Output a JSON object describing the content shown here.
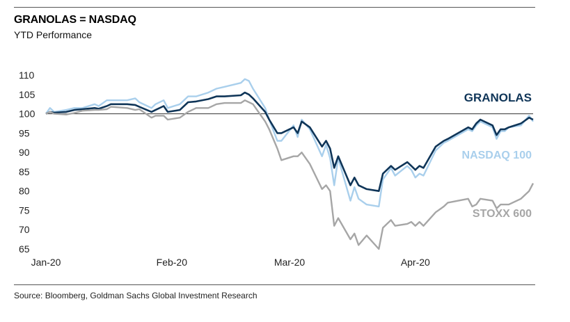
{
  "header": {
    "title": "GRANOLAS = NASDAQ",
    "subtitle": "YTD Performance"
  },
  "footer": {
    "source": "Source: Bloomberg, Goldman Sachs Global Investment Research"
  },
  "chart_data": {
    "type": "line",
    "title": "GRANOLAS = NASDAQ",
    "subtitle": "YTD Performance",
    "xlabel": "",
    "ylabel": "",
    "x_tick_labels": [
      "Jan-20",
      "Feb-20",
      "Mar-20",
      "Apr-20"
    ],
    "x_ticks": [
      "2020-01-01",
      "2020-02-01",
      "2020-03-01",
      "2020-04-01"
    ],
    "xlim": [
      "2020-01-01",
      "2020-04-30"
    ],
    "y_ticks": [
      65,
      70,
      75,
      80,
      85,
      90,
      95,
      100,
      105,
      110
    ],
    "ylim": [
      65,
      112
    ],
    "reference_line": 100,
    "grid": false,
    "legend": "inline labels at right end of series",
    "series": [
      {
        "name": "NASDAQ 100",
        "color": "#a9cfec",
        "points": [
          [
            "2020-01-01",
            100
          ],
          [
            "2020-01-02",
            101.5
          ],
          [
            "2020-01-03",
            100.5
          ],
          [
            "2020-01-06",
            101
          ],
          [
            "2020-01-08",
            101.5
          ],
          [
            "2020-01-10",
            101.5
          ],
          [
            "2020-01-13",
            102.5
          ],
          [
            "2020-01-14",
            102
          ],
          [
            "2020-01-16",
            103.5
          ],
          [
            "2020-01-17",
            103.5
          ],
          [
            "2020-01-21",
            103.5
          ],
          [
            "2020-01-23",
            104
          ],
          [
            "2020-01-24",
            103
          ],
          [
            "2020-01-27",
            101.5
          ],
          [
            "2020-01-28",
            102.5
          ],
          [
            "2020-01-30",
            103.5
          ],
          [
            "2020-01-31",
            101.5
          ],
          [
            "2020-02-03",
            102.5
          ],
          [
            "2020-02-05",
            104.5
          ],
          [
            "2020-02-07",
            104.5
          ],
          [
            "2020-02-10",
            105.5
          ],
          [
            "2020-02-12",
            106.5
          ],
          [
            "2020-02-14",
            107
          ],
          [
            "2020-02-18",
            108
          ],
          [
            "2020-02-19",
            109
          ],
          [
            "2020-02-20",
            108.5
          ],
          [
            "2020-02-21",
            106.5
          ],
          [
            "2020-02-24",
            101.5
          ],
          [
            "2020-02-25",
            98.5
          ],
          [
            "2020-02-27",
            93
          ],
          [
            "2020-02-28",
            93
          ],
          [
            "2020-03-02",
            97
          ],
          [
            "2020-03-03",
            94
          ],
          [
            "2020-03-04",
            98.5
          ],
          [
            "2020-03-06",
            96
          ],
          [
            "2020-03-09",
            89
          ],
          [
            "2020-03-10",
            92
          ],
          [
            "2020-03-11",
            88.5
          ],
          [
            "2020-03-12",
            81.5
          ],
          [
            "2020-03-13",
            88.5
          ],
          [
            "2020-03-16",
            77.5
          ],
          [
            "2020-03-17",
            81
          ],
          [
            "2020-03-18",
            78
          ],
          [
            "2020-03-20",
            76.5
          ],
          [
            "2020-03-23",
            76
          ],
          [
            "2020-03-24",
            83
          ],
          [
            "2020-03-26",
            86
          ],
          [
            "2020-03-27",
            84
          ],
          [
            "2020-03-30",
            86.5
          ],
          [
            "2020-03-31",
            85.5
          ],
          [
            "2020-04-01",
            83.5
          ],
          [
            "2020-04-02",
            84.5
          ],
          [
            "2020-04-03",
            84
          ],
          [
            "2020-04-06",
            90.5
          ],
          [
            "2020-04-08",
            92.5
          ],
          [
            "2020-04-09",
            93
          ],
          [
            "2020-04-14",
            96
          ],
          [
            "2020-04-15",
            95.5
          ],
          [
            "2020-04-16",
            97
          ],
          [
            "2020-04-17",
            98
          ],
          [
            "2020-04-20",
            96.5
          ],
          [
            "2020-04-21",
            93.5
          ],
          [
            "2020-04-22",
            95.5
          ],
          [
            "2020-04-23",
            95.5
          ],
          [
            "2020-04-24",
            96.5
          ],
          [
            "2020-04-27",
            97
          ],
          [
            "2020-04-29",
            99.5
          ],
          [
            "2020-04-30",
            98
          ]
        ]
      },
      {
        "name": "GRANOLAS",
        "color": "#0f3558",
        "points": [
          [
            "2020-01-01",
            100
          ],
          [
            "2020-01-02",
            100.5
          ],
          [
            "2020-01-03",
            100.3
          ],
          [
            "2020-01-06",
            100.5
          ],
          [
            "2020-01-08",
            101
          ],
          [
            "2020-01-10",
            101.2
          ],
          [
            "2020-01-13",
            101.5
          ],
          [
            "2020-01-14",
            101.3
          ],
          [
            "2020-01-16",
            102
          ],
          [
            "2020-01-17",
            102.5
          ],
          [
            "2020-01-21",
            102.5
          ],
          [
            "2020-01-23",
            102.3
          ],
          [
            "2020-01-24",
            101.8
          ],
          [
            "2020-01-27",
            100.5
          ],
          [
            "2020-01-28",
            101
          ],
          [
            "2020-01-30",
            102
          ],
          [
            "2020-01-31",
            100.5
          ],
          [
            "2020-02-03",
            101
          ],
          [
            "2020-02-05",
            103
          ],
          [
            "2020-02-07",
            103.2
          ],
          [
            "2020-02-10",
            103.8
          ],
          [
            "2020-02-12",
            104.5
          ],
          [
            "2020-02-14",
            104.5
          ],
          [
            "2020-02-18",
            104.8
          ],
          [
            "2020-02-19",
            105.5
          ],
          [
            "2020-02-20",
            105
          ],
          [
            "2020-02-21",
            104
          ],
          [
            "2020-02-24",
            100.5
          ],
          [
            "2020-02-25",
            98.5
          ],
          [
            "2020-02-27",
            95
          ],
          [
            "2020-02-28",
            95
          ],
          [
            "2020-03-02",
            96.5
          ],
          [
            "2020-03-03",
            95
          ],
          [
            "2020-03-04",
            98
          ],
          [
            "2020-03-06",
            96.5
          ],
          [
            "2020-03-09",
            91.5
          ],
          [
            "2020-03-10",
            93
          ],
          [
            "2020-03-11",
            91
          ],
          [
            "2020-03-12",
            86
          ],
          [
            "2020-03-13",
            89
          ],
          [
            "2020-03-16",
            81.5
          ],
          [
            "2020-03-17",
            83.5
          ],
          [
            "2020-03-18",
            81.5
          ],
          [
            "2020-03-20",
            80.5
          ],
          [
            "2020-03-23",
            80
          ],
          [
            "2020-03-24",
            84.5
          ],
          [
            "2020-03-26",
            86.5
          ],
          [
            "2020-03-27",
            85.5
          ],
          [
            "2020-03-30",
            87.5
          ],
          [
            "2020-03-31",
            86.5
          ],
          [
            "2020-04-01",
            85.5
          ],
          [
            "2020-04-02",
            86.5
          ],
          [
            "2020-04-03",
            86
          ],
          [
            "2020-04-06",
            91.5
          ],
          [
            "2020-04-08",
            93
          ],
          [
            "2020-04-09",
            93.5
          ],
          [
            "2020-04-14",
            96.5
          ],
          [
            "2020-04-15",
            96
          ],
          [
            "2020-04-16",
            97.5
          ],
          [
            "2020-04-17",
            98.5
          ],
          [
            "2020-04-20",
            97
          ],
          [
            "2020-04-21",
            94.5
          ],
          [
            "2020-04-22",
            96
          ],
          [
            "2020-04-23",
            96
          ],
          [
            "2020-04-24",
            96.5
          ],
          [
            "2020-04-27",
            97.5
          ],
          [
            "2020-04-29",
            99
          ],
          [
            "2020-04-30",
            98.5
          ]
        ]
      },
      {
        "name": "STOXX 600",
        "color": "#a6a6a6",
        "points": [
          [
            "2020-01-01",
            100
          ],
          [
            "2020-01-02",
            100.5
          ],
          [
            "2020-01-03",
            100
          ],
          [
            "2020-01-06",
            99.8
          ],
          [
            "2020-01-08",
            100.2
          ],
          [
            "2020-01-10",
            100.8
          ],
          [
            "2020-01-13",
            101
          ],
          [
            "2020-01-14",
            101
          ],
          [
            "2020-01-16",
            101.2
          ],
          [
            "2020-01-17",
            101.8
          ],
          [
            "2020-01-21",
            101.5
          ],
          [
            "2020-01-23",
            101
          ],
          [
            "2020-01-24",
            101.2
          ],
          [
            "2020-01-27",
            99
          ],
          [
            "2020-01-28",
            99.5
          ],
          [
            "2020-01-30",
            99.5
          ],
          [
            "2020-01-31",
            98.5
          ],
          [
            "2020-02-03",
            99
          ],
          [
            "2020-02-05",
            100.5
          ],
          [
            "2020-02-07",
            101.5
          ],
          [
            "2020-02-10",
            101.5
          ],
          [
            "2020-02-12",
            102.5
          ],
          [
            "2020-02-14",
            102.8
          ],
          [
            "2020-02-18",
            102.8
          ],
          [
            "2020-02-19",
            103.5
          ],
          [
            "2020-02-20",
            103
          ],
          [
            "2020-02-21",
            102.5
          ],
          [
            "2020-02-24",
            98
          ],
          [
            "2020-02-25",
            96
          ],
          [
            "2020-02-27",
            91
          ],
          [
            "2020-02-28",
            88
          ],
          [
            "2020-03-02",
            89
          ],
          [
            "2020-03-03",
            89
          ],
          [
            "2020-03-04",
            90
          ],
          [
            "2020-03-06",
            87
          ],
          [
            "2020-03-09",
            80.5
          ],
          [
            "2020-03-10",
            81.5
          ],
          [
            "2020-03-11",
            80
          ],
          [
            "2020-03-12",
            71
          ],
          [
            "2020-03-13",
            73
          ],
          [
            "2020-03-16",
            67.5
          ],
          [
            "2020-03-17",
            69
          ],
          [
            "2020-03-18",
            66
          ],
          [
            "2020-03-20",
            68.5
          ],
          [
            "2020-03-23",
            65
          ],
          [
            "2020-03-24",
            70.5
          ],
          [
            "2020-03-26",
            72.5
          ],
          [
            "2020-03-27",
            71
          ],
          [
            "2020-03-30",
            71.5
          ],
          [
            "2020-03-31",
            72
          ],
          [
            "2020-04-01",
            71
          ],
          [
            "2020-04-02",
            72
          ],
          [
            "2020-04-03",
            71
          ],
          [
            "2020-04-06",
            74.5
          ],
          [
            "2020-04-08",
            76
          ],
          [
            "2020-04-09",
            77
          ],
          [
            "2020-04-14",
            78
          ],
          [
            "2020-04-15",
            76
          ],
          [
            "2020-04-16",
            76.5
          ],
          [
            "2020-04-17",
            78
          ],
          [
            "2020-04-20",
            77.5
          ],
          [
            "2020-04-21",
            75.5
          ],
          [
            "2020-04-22",
            76.5
          ],
          [
            "2020-04-23",
            76.5
          ],
          [
            "2020-04-24",
            76.5
          ],
          [
            "2020-04-27",
            78
          ],
          [
            "2020-04-29",
            80
          ],
          [
            "2020-04-30",
            82
          ]
        ]
      }
    ],
    "labels": [
      {
        "series": "GRANOLAS",
        "text": "GRANOLAS",
        "color": "#0f3558"
      },
      {
        "series": "NASDAQ 100",
        "text": "NASDAQ 100",
        "color": "#a9cfec"
      },
      {
        "series": "STOXX 600",
        "text": "STOXX 600",
        "color": "#a6a6a6"
      }
    ]
  }
}
